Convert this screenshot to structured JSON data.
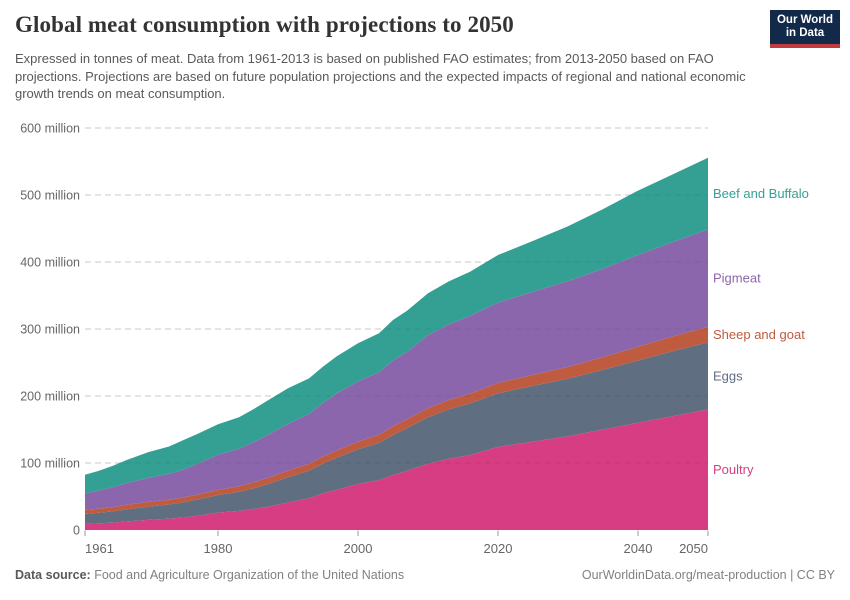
{
  "header": {
    "title": "Global meat consumption with projections to 2050",
    "subtitle": "Expressed in tonnes of meat. Data from 1961-2013 is based on published FAO estimates; from 2013-2050 based on FAO projections. Projections are based on future population projections and the expected impacts of regional and national economic growth trends on meat consumption.",
    "logo": {
      "line1": "Our World",
      "line2": "in Data"
    }
  },
  "footer": {
    "datasource_label": "Data source:",
    "datasource": "Food and Agriculture Organization of the United Nations",
    "link": "OurWorldinData.org/meat-production | CC BY"
  },
  "colors": {
    "background": "#ffffff",
    "title": "#333333",
    "subtitle": "#595959",
    "axis_text": "#666666",
    "gridline": "#dcdcdc",
    "tick": "#9a9a9a",
    "logo_navy": "#12294a",
    "logo_red": "#c23b3f",
    "footer_text": "#818181"
  },
  "chart_data": {
    "type": "area",
    "stacked": true,
    "title": "Global meat consumption with projections to 2050",
    "xlabel": "",
    "ylabel": "",
    "unit": "tonnes of meat",
    "values_unit": "million tonnes",
    "grid": "dashed",
    "legend_position": "right-of-plot",
    "xlim": [
      1961,
      2050
    ],
    "ylim_million": [
      0,
      600
    ],
    "x": [
      1961,
      1963,
      1965,
      1967,
      1970,
      1973,
      1975,
      1977,
      1980,
      1983,
      1985,
      1987,
      1990,
      1993,
      1995,
      1997,
      2000,
      2003,
      2005,
      2007,
      2010,
      2013,
      2016,
      2020,
      2025,
      2030,
      2035,
      2040,
      2045,
      2050
    ],
    "series": [
      {
        "name": "Poultry",
        "color": "#d63d82",
        "values": [
          8.9,
          10.0,
          11.0,
          12.9,
          15.1,
          17.0,
          18.7,
          21.3,
          25.9,
          28.5,
          31.2,
          34.5,
          41.0,
          47.5,
          54.8,
          60.0,
          68.6,
          74.5,
          82.0,
          88.5,
          99.0,
          106.4,
          112,
          124,
          132,
          140,
          150,
          160,
          170,
          180
        ]
      },
      {
        "name": "Eggs",
        "color": "#5f6e80",
        "values": [
          15.1,
          15.8,
          16.8,
          18.0,
          19.5,
          21.0,
          22.5,
          24.0,
          26.2,
          28.5,
          30.8,
          33.5,
          37.6,
          41.0,
          44.3,
          48.0,
          51.7,
          55.5,
          59.8,
          63.5,
          69.3,
          73.9,
          77,
          80,
          83,
          86,
          89,
          93,
          97,
          100
        ]
      },
      {
        "name": "Sheep and goat",
        "color": "#bf5b3e",
        "values": [
          6.0,
          6.2,
          6.4,
          6.8,
          7.2,
          7.2,
          7.3,
          7.4,
          7.6,
          8.2,
          8.7,
          9.2,
          9.9,
          10.2,
          10.5,
          11.0,
          11.4,
          12.2,
          12.8,
          13.2,
          13.5,
          13.9,
          14.5,
          15.5,
          16.5,
          17.5,
          19.0,
          20.5,
          22.0,
          23.5
        ]
      },
      {
        "name": "Pigmeat",
        "color": "#8b66ad",
        "values": [
          24.7,
          27.0,
          29.8,
          32.5,
          35.8,
          38.5,
          41.7,
          46.0,
          52.7,
          56.0,
          59.9,
          64.0,
          69.8,
          74.5,
          80.1,
          85.0,
          90.1,
          93.5,
          98.4,
          100.5,
          109.3,
          113.0,
          116,
          120,
          124,
          128,
          132,
          137,
          141,
          145
        ]
      },
      {
        "name": "Beef and Buffalo",
        "color": "#34a093",
        "values": [
          27.7,
          29.5,
          31.8,
          34.5,
          38.3,
          41.0,
          43.7,
          44.5,
          45.5,
          47.0,
          49.3,
          51.5,
          53.4,
          53.0,
          54.2,
          55.5,
          56.9,
          58.0,
          60.4,
          61.5,
          62.4,
          64.0,
          66,
          71,
          76,
          82,
          89,
          96,
          101,
          107
        ]
      }
    ],
    "y_ticks": [
      {
        "value": 0,
        "label": "0"
      },
      {
        "value": 100,
        "label": "100 million"
      },
      {
        "value": 200,
        "label": "200 million"
      },
      {
        "value": 300,
        "label": "300 million"
      },
      {
        "value": 400,
        "label": "400 million"
      },
      {
        "value": 500,
        "label": "500 million"
      },
      {
        "value": 600,
        "label": "600 million"
      }
    ],
    "x_ticks": [
      1961,
      1980,
      2000,
      2020,
      2040,
      2050
    ]
  }
}
